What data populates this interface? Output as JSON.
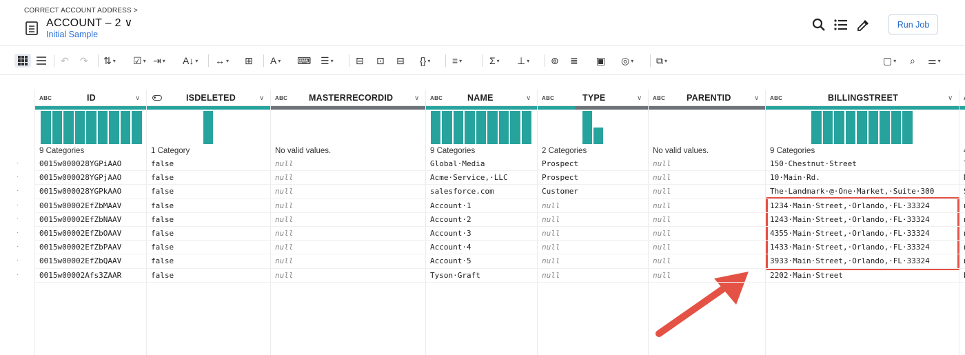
{
  "header": {
    "breadcrumb": "CORRECT ACCOUNT ADDRESS >",
    "title": "ACCOUNT – 2 ∨",
    "subtitle": "Initial Sample",
    "run_button": "Run Job"
  },
  "columns": [
    {
      "id": "id",
      "type_badge": "ABC",
      "name": "ID",
      "summary": "9 Categories",
      "hist": [
        1,
        1,
        1,
        1,
        1,
        1,
        1,
        1,
        1
      ]
    },
    {
      "id": "isdeleted",
      "type_badge": "",
      "name": "ISDELETED",
      "summary": "1 Category",
      "hist": [
        1
      ]
    },
    {
      "id": "masterrecordid",
      "type_badge": "ABC",
      "name": "MASTERRECORDID",
      "summary": "No valid values.",
      "hist": []
    },
    {
      "id": "name",
      "type_badge": "ABC",
      "name": "NAME",
      "summary": "9 Categories",
      "hist": [
        1,
        1,
        1,
        1,
        1,
        1,
        1,
        1,
        1
      ]
    },
    {
      "id": "type",
      "type_badge": "ABC",
      "name": "TYPE",
      "summary": "2 Categories",
      "hist": [
        1,
        0.5
      ]
    },
    {
      "id": "parentid",
      "type_badge": "ABC",
      "name": "PARENTID",
      "summary": "No valid values.",
      "hist": []
    },
    {
      "id": "billingstreet",
      "type_badge": "ABC",
      "name": "BILLINGSTREET",
      "summary": "9 Categories",
      "hist": [
        1,
        1,
        1,
        1,
        1,
        1,
        1,
        1,
        1
      ]
    },
    {
      "id": "next",
      "type_badge": "A",
      "name": "",
      "summary": "4",
      "hist": []
    }
  ],
  "rows": [
    [
      "0015w000028YGPiAAO",
      "false",
      "null",
      "Global·Media",
      "Prospect",
      "null",
      "150·Chestnut·Street",
      "T"
    ],
    [
      "0015w000028YGPjAAO",
      "false",
      "null",
      "Acme·Service,·LLC",
      "Prospect",
      "null",
      "10·Main·Rd.",
      "N"
    ],
    [
      "0015w000028YGPkAAO",
      "false",
      "null",
      "salesforce.com",
      "Customer",
      "null",
      "The·Landmark·@·One·Market,·Suite·300",
      "S"
    ],
    [
      "0015w00002EfZbMAAV",
      "false",
      "null",
      "Account·1",
      "null",
      "null",
      "1234·Main·Street,·Orlando,·FL·33324",
      "n"
    ],
    [
      "0015w00002EfZbNAAV",
      "false",
      "null",
      "Account·2",
      "null",
      "null",
      "1243·Main·Street,·Orlando,·FL·33324",
      "n"
    ],
    [
      "0015w00002EfZbOAAV",
      "false",
      "null",
      "Account·3",
      "null",
      "null",
      "4355·Main·Street,·Orlando,·FL·33324",
      "n"
    ],
    [
      "0015w00002EfZbPAAV",
      "false",
      "null",
      "Account·4",
      "null",
      "null",
      "1433·Main·Street,·Orlando,·FL·33324",
      "n"
    ],
    [
      "0015w00002EfZbQAAV",
      "false",
      "null",
      "Account·5",
      "null",
      "null",
      "3933·Main·Street,·Orlando,·FL·33324",
      "n"
    ],
    [
      "0015w00002Afs3ZAAR",
      "false",
      "null",
      "Tyson·Graft",
      "null",
      "null",
      "2202·Main·Street",
      "B"
    ]
  ],
  "row_gutter_marker": "·",
  "colors": {
    "accent": "#27a39e",
    "quality_missing": "#6d7278",
    "highlight": "#e45245",
    "link": "#2a6fd6"
  },
  "icons": {
    "doc": "document-icon",
    "search": "search-icon",
    "list": "list-icon",
    "eyedropper": "eyedropper-icon"
  }
}
